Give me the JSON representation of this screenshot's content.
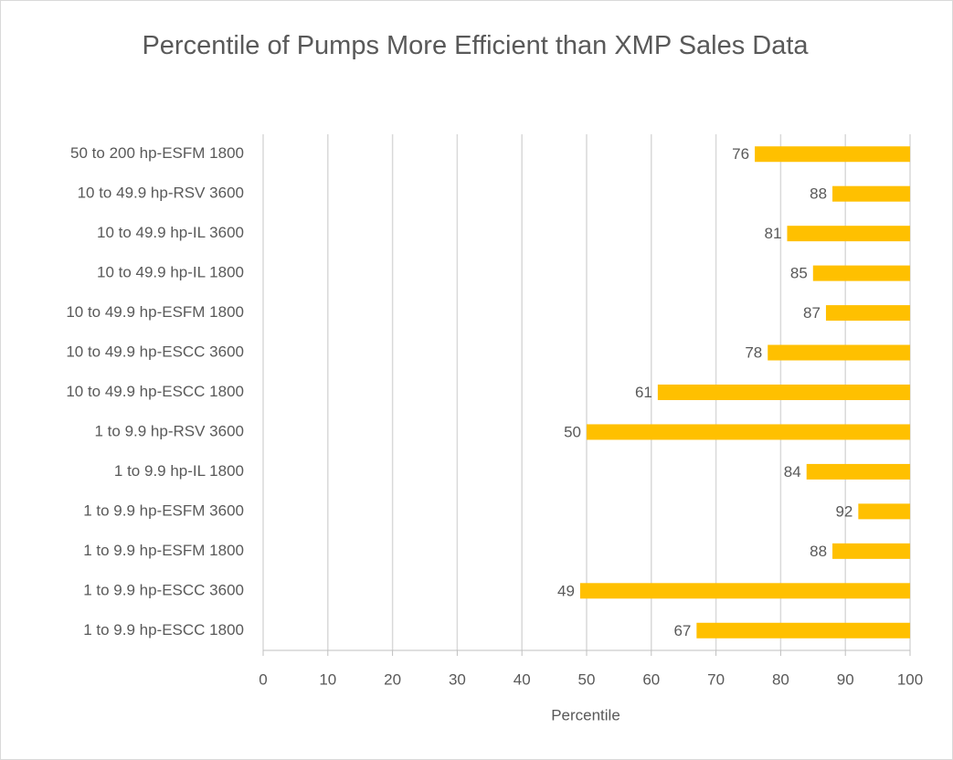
{
  "chart_data": {
    "type": "bar",
    "orientation": "horizontal",
    "title": "Percentile of Pumps More Efficient than XMP Sales Data",
    "x_label": "Percentile",
    "categories": [
      "50 to 200 hp-ESFM 1800",
      "10 to 49.9 hp-RSV 3600",
      "10 to 49.9 hp-IL 3600",
      "10 to 49.9 hp-IL 1800",
      "10 to 49.9 hp-ESFM 1800",
      "10 to 49.9 hp-ESCC 3600",
      "10 to 49.9 hp-ESCC 1800",
      "1 to 9.9 hp-RSV 3600",
      "1 to 9.9 hp-IL 1800",
      "1 to 9.9 hp-ESFM 3600",
      "1 to 9.9 hp-ESFM 1800",
      "1 to 9.9 hp-ESCC 3600",
      "1 to 9.9 hp-ESCC 1800"
    ],
    "values": [
      76,
      88,
      81,
      85,
      87,
      78,
      61,
      50,
      84,
      92,
      88,
      49,
      67
    ],
    "color": "#ffc000",
    "xlim": [
      0,
      100
    ],
    "xticks": [
      0,
      10,
      20,
      30,
      40,
      50,
      60,
      70,
      80,
      90,
      100
    ],
    "grid": true
  }
}
